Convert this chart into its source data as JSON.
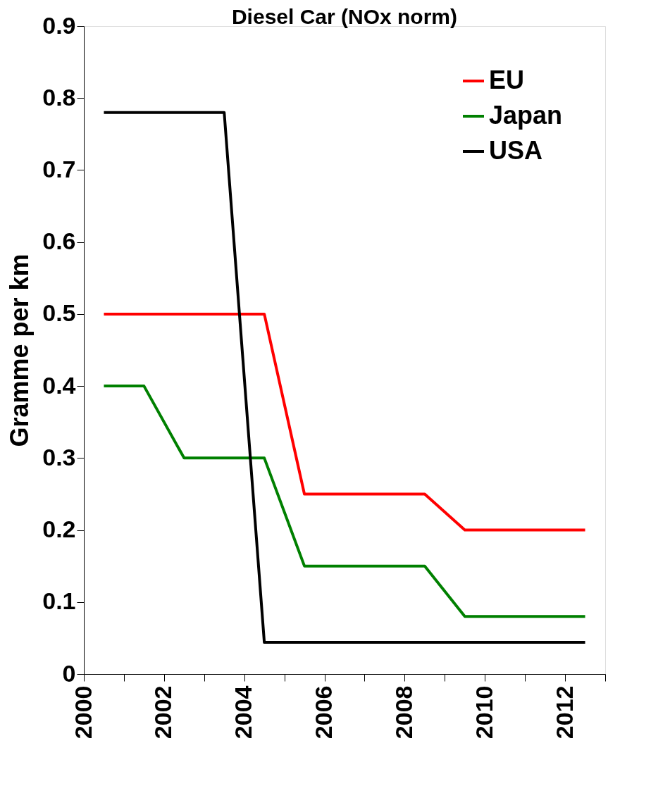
{
  "chart_data": {
    "type": "line",
    "title": "Diesel Car (NOx norm)",
    "ylabel": "Gramme per km",
    "xlim": [
      2000,
      2013
    ],
    "xticks": [
      2000,
      {
        "value": 2001,
        "label": null
      },
      2002,
      {
        "value": 2003,
        "label": null
      },
      2004,
      {
        "value": 2005,
        "label": null
      },
      2006,
      {
        "value": 2007,
        "label": null
      },
      2008,
      {
        "value": 2009,
        "label": null
      },
      2010,
      {
        "value": 2011,
        "label": null
      },
      2012,
      {
        "value": 2013,
        "label": null
      }
    ],
    "ylim": [
      0,
      0.9
    ],
    "yticks": [
      0,
      0.1,
      0.2,
      0.3,
      0.4,
      0.5,
      0.6,
      0.7,
      0.8,
      0.9
    ],
    "grid": false,
    "legend": "top right",
    "marker": "none",
    "line_style": "solid",
    "series": [
      {
        "name": "EU",
        "color": "#ff0000",
        "x": [
          2000.5,
          2004.5,
          2005.5,
          2008.5,
          2009.5,
          2012.5
        ],
        "values": [
          0.5,
          0.5,
          0.25,
          0.25,
          0.2,
          0.2
        ]
      },
      {
        "name": "Japan",
        "color": "#008000",
        "x": [
          2000.5,
          2001.5,
          2002.5,
          2004.5,
          2005.5,
          2008.5,
          2009.5,
          2012.5
        ],
        "values": [
          0.4,
          0.4,
          0.3,
          0.3,
          0.15,
          0.15,
          0.08,
          0.08
        ]
      },
      {
        "name": "USA",
        "color": "#000000",
        "x": [
          2000.5,
          2003.5,
          2004.5,
          2012.5
        ],
        "values": [
          0.78,
          0.78,
          0.044,
          0.044
        ]
      }
    ]
  }
}
